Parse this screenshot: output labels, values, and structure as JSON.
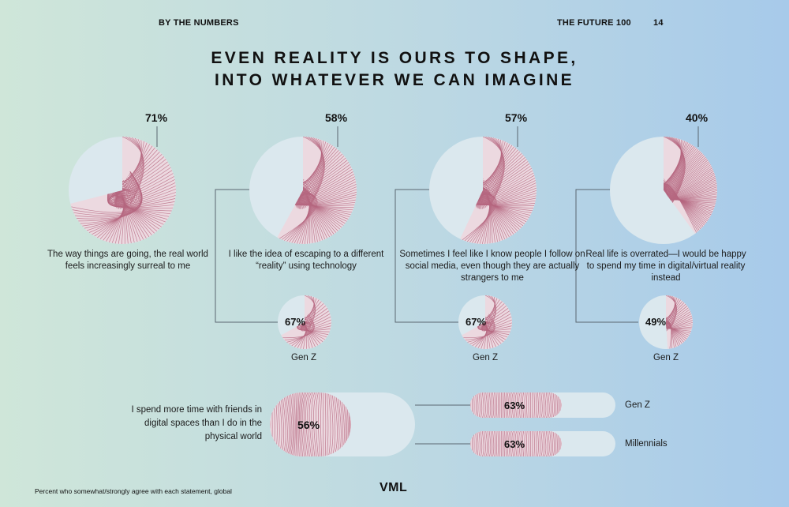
{
  "header": {
    "section": "BY THE NUMBERS",
    "publication": "THE FUTURE 100",
    "page_number": "14"
  },
  "title": {
    "line1": "EVEN REALITY IS OURS TO SHAPE,",
    "line2": "INTO WHATEVER WE CAN IMAGINE"
  },
  "chart_data": [
    {
      "type": "pie",
      "label": "The way things are going, the real world feels increasingly surreal to me",
      "values": [
        71
      ],
      "value_labels": [
        "71%"
      ]
    },
    {
      "type": "pie",
      "label": "I like the idea of escaping to a different “reality” using technology",
      "values": [
        58
      ],
      "value_labels": [
        "58%"
      ],
      "sub": {
        "name": "Gen Z",
        "value": 67,
        "value_label": "67%"
      }
    },
    {
      "type": "pie",
      "label": "Sometimes I feel like I know people I follow on social media, even though they are actually strangers to me",
      "values": [
        57
      ],
      "value_labels": [
        "57%"
      ],
      "sub": {
        "name": "Gen Z",
        "value": 67,
        "value_label": "67%"
      }
    },
    {
      "type": "pie",
      "label": "Real life is overrated—I would be happy to spend my time in digital/virtual reality instead",
      "values": [
        40
      ],
      "value_labels": [
        "40%"
      ],
      "sub": {
        "name": "Gen Z",
        "value": 49,
        "value_label": "49%"
      }
    },
    {
      "type": "bar",
      "label": "I spend more time with friends in digital spaces than I do in the physical world",
      "categories": [
        "",
        "Gen Z",
        "Millennials"
      ],
      "values": [
        56,
        63,
        63
      ],
      "value_labels": [
        "56%",
        "63%",
        "63%"
      ]
    }
  ],
  "footnote": "Percent who somewhat/strongly agree with each statement, global",
  "logo": "VML",
  "colors": {
    "pie_bg": "#dbe8ee",
    "wave": "#b5667f",
    "connector": "#5a6670",
    "bg_left": "#cfe6d9",
    "bg_right": "#a9cbe9"
  }
}
